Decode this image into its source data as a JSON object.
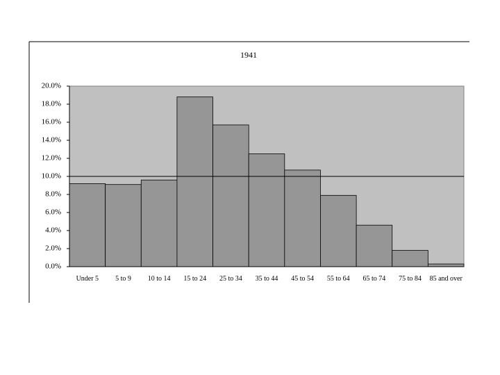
{
  "chart_data": {
    "type": "bar",
    "title": "1941",
    "categories": [
      "Under 5",
      "5 to 9",
      "10 to 14",
      "15 to 24",
      "25 to 34",
      "35 to 44",
      "45 to 54",
      "55 to 64",
      "65 to 74",
      "75 to 84",
      "85 and over"
    ],
    "values": [
      9.2,
      9.1,
      9.6,
      18.8,
      15.7,
      12.5,
      10.7,
      7.9,
      4.6,
      1.8,
      0.3
    ],
    "color": "#969696",
    "plot_background": "#c0c0c0",
    "reference_line": 10,
    "ylim": [
      0,
      20
    ],
    "yticks": [
      {
        "value": 0,
        "label": "0.0%"
      },
      {
        "value": 2,
        "label": "2.0%"
      },
      {
        "value": 4,
        "label": "4.0%"
      },
      {
        "value": 6,
        "label": "6.0%"
      },
      {
        "value": 8,
        "label": "8.0%"
      },
      {
        "value": 10,
        "label": "10.0%"
      },
      {
        "value": 12,
        "label": "12.0%"
      },
      {
        "value": 14,
        "label": "14.0%"
      },
      {
        "value": 16,
        "label": "16.0%"
      },
      {
        "value": 18,
        "label": "18.0%"
      },
      {
        "value": 20,
        "label": "20.0%"
      }
    ]
  }
}
